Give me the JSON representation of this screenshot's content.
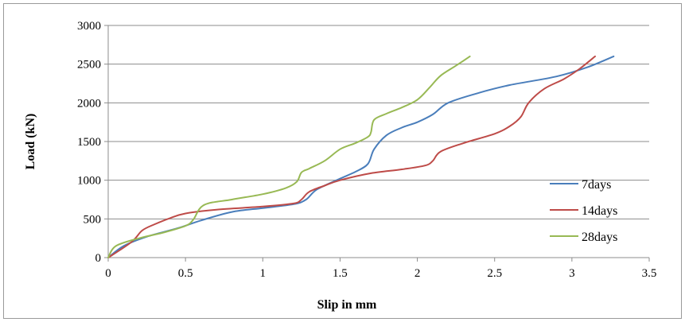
{
  "chart_data": {
    "type": "line",
    "title": "",
    "xlabel": "Slip in mm",
    "ylabel": "Load (kN)",
    "xlim": [
      0,
      3.5
    ],
    "ylim": [
      0,
      3000
    ],
    "x_ticks": [
      0,
      0.5,
      1,
      1.5,
      2,
      2.5,
      3,
      3.5
    ],
    "x_tick_labels": [
      "0",
      "0.5",
      "1",
      "1.5",
      "2",
      "2.5",
      "3",
      "3.5"
    ],
    "y_ticks": [
      0,
      500,
      1000,
      1500,
      2000,
      2500,
      3000
    ],
    "y_tick_labels": [
      "0",
      "500",
      "1000",
      "1500",
      "2000",
      "2500",
      "3000"
    ],
    "grid": "horizontal",
    "legend_position": "right",
    "series": [
      {
        "name": "7days",
        "color": "#4a7ebb",
        "points": [
          [
            0,
            0
          ],
          [
            0.1,
            150
          ],
          [
            0.25,
            270
          ],
          [
            0.45,
            380
          ],
          [
            0.6,
            480
          ],
          [
            0.8,
            590
          ],
          [
            1.0,
            640
          ],
          [
            1.2,
            690
          ],
          [
            1.28,
            750
          ],
          [
            1.35,
            880
          ],
          [
            1.5,
            1020
          ],
          [
            1.6,
            1110
          ],
          [
            1.68,
            1210
          ],
          [
            1.72,
            1400
          ],
          [
            1.8,
            1580
          ],
          [
            1.9,
            1680
          ],
          [
            2.0,
            1750
          ],
          [
            2.1,
            1850
          ],
          [
            2.2,
            2000
          ],
          [
            2.4,
            2130
          ],
          [
            2.6,
            2230
          ],
          [
            2.9,
            2340
          ],
          [
            3.1,
            2460
          ],
          [
            3.27,
            2600
          ]
        ]
      },
      {
        "name": "14days",
        "color": "#be4b48",
        "points": [
          [
            0,
            0
          ],
          [
            0.15,
            200
          ],
          [
            0.22,
            350
          ],
          [
            0.3,
            430
          ],
          [
            0.4,
            510
          ],
          [
            0.5,
            570
          ],
          [
            0.7,
            620
          ],
          [
            1.0,
            660
          ],
          [
            1.2,
            700
          ],
          [
            1.25,
            750
          ],
          [
            1.3,
            850
          ],
          [
            1.4,
            930
          ],
          [
            1.5,
            1000
          ],
          [
            1.7,
            1090
          ],
          [
            1.9,
            1140
          ],
          [
            2.05,
            1190
          ],
          [
            2.1,
            1250
          ],
          [
            2.15,
            1370
          ],
          [
            2.3,
            1480
          ],
          [
            2.5,
            1600
          ],
          [
            2.6,
            1700
          ],
          [
            2.67,
            1820
          ],
          [
            2.72,
            2000
          ],
          [
            2.82,
            2180
          ],
          [
            2.95,
            2310
          ],
          [
            3.05,
            2440
          ],
          [
            3.15,
            2600
          ]
        ]
      },
      {
        "name": "28days",
        "color": "#98b954",
        "points": [
          [
            0,
            0
          ],
          [
            0.05,
            150
          ],
          [
            0.2,
            250
          ],
          [
            0.35,
            320
          ],
          [
            0.5,
            410
          ],
          [
            0.55,
            490
          ],
          [
            0.62,
            680
          ],
          [
            0.8,
            750
          ],
          [
            1.0,
            820
          ],
          [
            1.15,
            900
          ],
          [
            1.22,
            980
          ],
          [
            1.25,
            1100
          ],
          [
            1.3,
            1150
          ],
          [
            1.4,
            1250
          ],
          [
            1.5,
            1400
          ],
          [
            1.6,
            1480
          ],
          [
            1.68,
            1560
          ],
          [
            1.7,
            1620
          ],
          [
            1.72,
            1780
          ],
          [
            1.8,
            1860
          ],
          [
            1.9,
            1940
          ],
          [
            2.0,
            2040
          ],
          [
            2.08,
            2200
          ],
          [
            2.15,
            2350
          ],
          [
            2.25,
            2480
          ],
          [
            2.34,
            2600
          ]
        ]
      }
    ]
  }
}
